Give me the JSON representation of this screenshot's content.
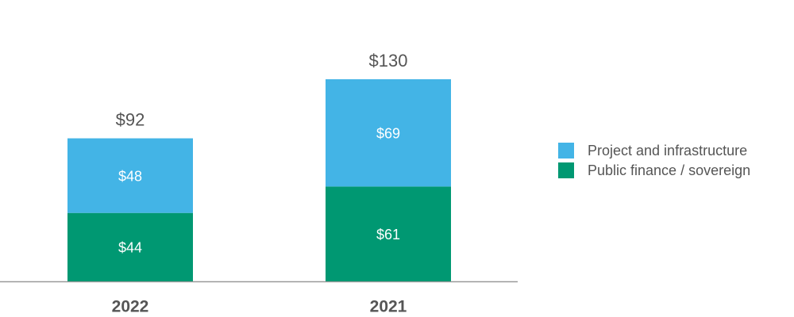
{
  "chart_data": {
    "type": "stacked_bar",
    "categories": [
      "2022",
      "2021"
    ],
    "series": [
      {
        "name": "Project and infrastructure",
        "color": "#43b4e6",
        "values": [
          48,
          69
        ],
        "value_labels": [
          "$48",
          "$69"
        ]
      },
      {
        "name": "Public finance / sovereign",
        "color": "#009872",
        "values": [
          44,
          61
        ],
        "value_labels": [
          "$44",
          "$61"
        ]
      }
    ],
    "totals": [
      92,
      130
    ],
    "total_labels": [
      "$92",
      "$130"
    ]
  }
}
